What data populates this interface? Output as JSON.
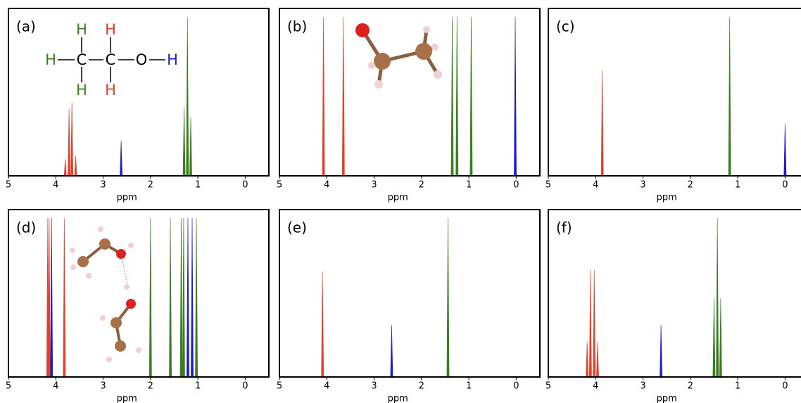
{
  "chart_data": [
    {
      "type": "spectrum",
      "label": "(a)",
      "xlabel": "ppm",
      "xlim": [
        5,
        -0.5
      ],
      "xticks": [
        5,
        4,
        3,
        2,
        1,
        0
      ],
      "ylim": [
        0,
        1
      ],
      "structure": [
        "H",
        "H",
        "H",
        "C",
        "C",
        "O",
        "H",
        "H",
        "H"
      ],
      "series": [
        {
          "color": "#e2402b",
          "x": [
            3.8,
            3.72,
            3.66,
            3.58
          ],
          "values": [
            0.1,
            0.4,
            0.44,
            0.12
          ]
        },
        {
          "color": "#1c1cd0",
          "x": [
            2.62
          ],
          "values": [
            0.21
          ]
        },
        {
          "color": "#3a7d1e",
          "x": [
            1.29,
            1.22,
            1.15
          ],
          "values": [
            0.41,
            0.95,
            0.35
          ]
        }
      ]
    },
    {
      "type": "spectrum",
      "label": "(b)",
      "xlabel": "ppm",
      "xlim": [
        5,
        -0.5
      ],
      "xticks": [
        5,
        4,
        3,
        2,
        1,
        0
      ],
      "ylim": [
        0,
        1
      ],
      "series": [
        {
          "color": "#e2402b",
          "x": [
            4.07,
            3.65
          ],
          "values": [
            0.95,
            0.95
          ]
        },
        {
          "color": "#3a7d1e",
          "x": [
            1.35,
            1.25,
            0.95
          ],
          "values": [
            0.95,
            0.95,
            0.95
          ]
        },
        {
          "color": "#1c1cd0",
          "x": [
            0.02
          ],
          "values": [
            0.95
          ]
        }
      ]
    },
    {
      "type": "spectrum",
      "label": "(c)",
      "xlabel": "ppm",
      "xlim": [
        5,
        -0.5
      ],
      "xticks": [
        5,
        4,
        3,
        2,
        1,
        0
      ],
      "ylim": [
        0,
        1
      ],
      "series": [
        {
          "color": "#e2402b",
          "x": [
            3.86
          ],
          "values": [
            0.63
          ]
        },
        {
          "color": "#3a7d1e",
          "x": [
            1.17
          ],
          "values": [
            0.95
          ]
        },
        {
          "color": "#1c1cd0",
          "x": [
            0.0
          ],
          "values": [
            0.31
          ]
        }
      ]
    },
    {
      "type": "spectrum",
      "label": "(d)",
      "xlabel": "ppm",
      "xlim": [
        5,
        -0.5
      ],
      "xticks": [
        5,
        4,
        3,
        2,
        1,
        0
      ],
      "ylim": [
        0,
        1
      ],
      "series": [
        {
          "color": "#e2402b",
          "x": [
            4.17,
            4.14,
            3.82
          ],
          "values": [
            0.95,
            0.95,
            0.95
          ]
        },
        {
          "color": "#1c1cd0",
          "x": [
            4.09,
            1.21,
            1.12
          ],
          "values": [
            0.95,
            0.95,
            0.95
          ]
        },
        {
          "color": "#3a7d1e",
          "x": [
            2.0,
            1.58,
            1.35,
            1.3,
            1.03
          ],
          "values": [
            0.95,
            0.95,
            0.95,
            0.95,
            0.95
          ]
        }
      ]
    },
    {
      "type": "spectrum",
      "label": "(e)",
      "xlabel": "ppm",
      "xlim": [
        5,
        -0.5
      ],
      "xticks": [
        5,
        4,
        3,
        2,
        1,
        0
      ],
      "ylim": [
        0,
        1
      ],
      "series": [
        {
          "color": "#e2402b",
          "x": [
            4.09
          ],
          "values": [
            0.63
          ]
        },
        {
          "color": "#1c1cd0",
          "x": [
            2.63
          ],
          "values": [
            0.31
          ]
        },
        {
          "color": "#3a7d1e",
          "x": [
            1.44
          ],
          "values": [
            0.95
          ]
        }
      ]
    },
    {
      "type": "spectrum",
      "label": "(f)",
      "xlabel": "ppm",
      "xlim": [
        5,
        -0.5
      ],
      "xticks": [
        5,
        4,
        3,
        2,
        1,
        0
      ],
      "ylim": [
        0,
        1
      ],
      "series": [
        {
          "color": "#e2402b",
          "x": [
            4.18,
            4.11,
            4.03,
            3.96
          ],
          "values": [
            0.21,
            0.64,
            0.64,
            0.21
          ]
        },
        {
          "color": "#1c1cd0",
          "x": [
            2.62
          ],
          "values": [
            0.31
          ]
        },
        {
          "color": "#3a7d1e",
          "x": [
            1.5,
            1.43,
            1.36
          ],
          "values": [
            0.47,
            0.95,
            0.47
          ]
        }
      ]
    }
  ]
}
